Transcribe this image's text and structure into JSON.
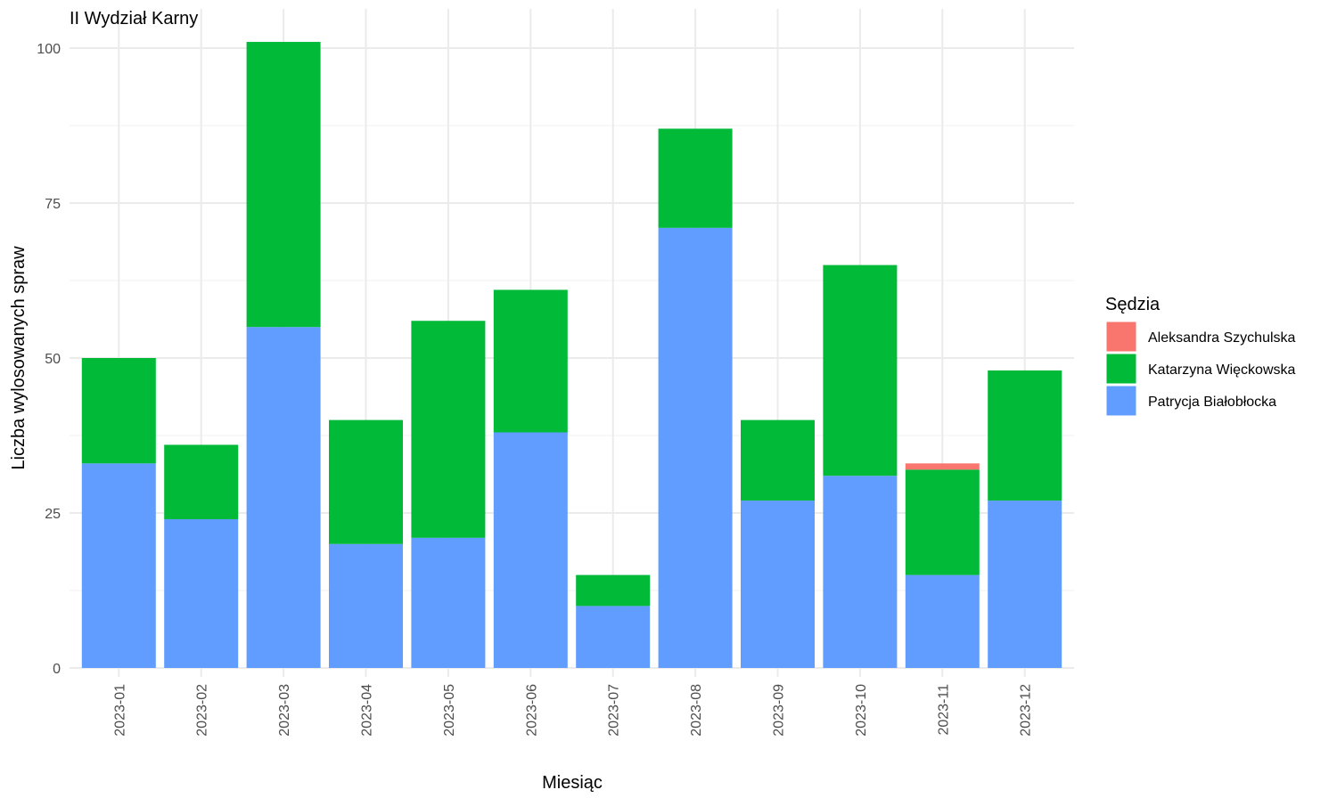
{
  "chart_data": {
    "type": "bar",
    "stacked": true,
    "title": "II Wydział Karny",
    "xlabel": "Miesiąc",
    "ylabel": "Liczba wylosowanych spraw",
    "ylim": [
      0,
      104
    ],
    "yticks": [
      0,
      25,
      50,
      75,
      100
    ],
    "grid": true,
    "legend_position": "right",
    "legend_title": "Sędzia",
    "categories": [
      "2023-01",
      "2023-02",
      "2023-03",
      "2023-04",
      "2023-05",
      "2023-06",
      "2023-07",
      "2023-08",
      "2023-09",
      "2023-10",
      "2023-11",
      "2023-12"
    ],
    "series": [
      {
        "name": "Aleksandra Szychulska",
        "color": "#F8766D",
        "values": [
          0,
          0,
          0,
          0,
          0,
          0,
          0,
          0,
          0,
          0,
          1,
          0
        ]
      },
      {
        "name": "Katarzyna Więckowska",
        "color": "#00BA38",
        "values": [
          17,
          12,
          46,
          20,
          35,
          23,
          5,
          16,
          13,
          34,
          17,
          21
        ]
      },
      {
        "name": "Patrycja Białobłocka",
        "color": "#619CFF",
        "values": [
          33,
          24,
          55,
          20,
          21,
          38,
          10,
          71,
          27,
          31,
          15,
          27
        ]
      }
    ]
  }
}
